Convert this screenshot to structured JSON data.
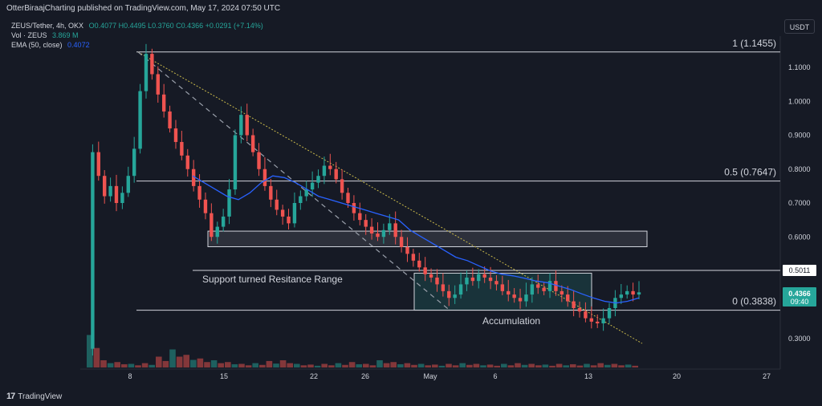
{
  "header": {
    "published": "OtterBiraajCharting published on TradingView.com, May 17, 2024 07:50 UTC"
  },
  "legend": {
    "symbol": "ZEUS/Tether, 4h, OKX",
    "ohlc": "O0.4077  H0.4495  L0.3760  C0.4366  +0.0291 (+7.14%)",
    "vol_label": "Vol · ZEUS",
    "vol_value": "3.869 M",
    "ema_label": "EMA (50, close)",
    "ema_value": "0.4072"
  },
  "currency_button": "USDT",
  "footer": {
    "brand": "TradingView"
  },
  "colors": {
    "up": "#26a69a",
    "down": "#ef5350",
    "ema": "#2962ff",
    "level_line": "#d1d4dc",
    "trend_dotted": "#c8b84a"
  },
  "chart_data": {
    "type": "candlestick",
    "ylim": [
      0.25,
      1.2
    ],
    "y_ticks": [
      "1.1000",
      "1.0000",
      "0.9000",
      "0.8000",
      "0.7000",
      "0.6000",
      "0.3000"
    ],
    "x_ticks": [
      "8",
      "15",
      "22",
      "26",
      "May",
      "6",
      "13",
      "20",
      "27"
    ],
    "price_labels": {
      "current": "0.4366",
      "countdown": "09:40",
      "resistance": "0.5011"
    },
    "fib_levels": [
      {
        "label": "1 (1.1455)",
        "value": 1.1455
      },
      {
        "label": "0.5 (0.7647)",
        "value": 0.7647
      },
      {
        "label": "0 (0.3838)",
        "value": 0.3838
      }
    ],
    "resistance_line": {
      "value": 0.5011
    },
    "zones": [
      {
        "low": 0.571,
        "high": 0.617
      },
      {
        "low": 0.384,
        "high": 0.493
      }
    ],
    "annotations": [
      "Support turned Resitance Range",
      "Accumulation"
    ],
    "price_path": [
      0.27,
      0.85,
      0.78,
      0.72,
      0.75,
      0.7,
      0.73,
      0.78,
      0.86,
      1.03,
      1.14,
      1.08,
      1.02,
      0.97,
      0.92,
      0.88,
      0.84,
      0.8,
      0.75,
      0.71,
      0.67,
      0.6,
      0.63,
      0.66,
      0.74,
      0.9,
      0.96,
      0.9,
      0.85,
      0.8,
      0.75,
      0.71,
      0.68,
      0.66,
      0.64,
      0.7,
      0.72,
      0.74,
      0.76,
      0.78,
      0.81,
      0.8,
      0.77,
      0.73,
      0.7,
      0.67,
      0.65,
      0.63,
      0.61,
      0.6,
      0.62,
      0.64,
      0.6,
      0.57,
      0.55,
      0.53,
      0.51,
      0.49,
      0.48,
      0.46,
      0.44,
      0.42,
      0.43,
      0.46,
      0.48,
      0.47,
      0.49,
      0.48,
      0.47,
      0.46,
      0.44,
      0.43,
      0.42,
      0.41,
      0.43,
      0.46,
      0.45,
      0.44,
      0.47,
      0.44,
      0.43,
      0.41,
      0.39,
      0.38,
      0.36,
      0.35,
      0.345,
      0.36,
      0.39,
      0.42,
      0.43,
      0.44,
      0.43,
      0.4366
    ],
    "ema_path": [
      0.78,
      0.76,
      0.74,
      0.72,
      0.71,
      0.73,
      0.76,
      0.78,
      0.775,
      0.76,
      0.74,
      0.72,
      0.71,
      0.7,
      0.69,
      0.68,
      0.67,
      0.66,
      0.65,
      0.62,
      0.6,
      0.58,
      0.56,
      0.54,
      0.53,
      0.515,
      0.5,
      0.49,
      0.485,
      0.478,
      0.47,
      0.465,
      0.455,
      0.445,
      0.432,
      0.42,
      0.41,
      0.405,
      0.41,
      0.42
    ],
    "volume_rel": [
      0.9,
      0.2,
      0.15,
      0.1,
      0.12,
      0.3,
      0.5,
      0.35,
      0.25,
      0.2,
      0.15,
      0.1,
      0.12,
      0.18,
      0.2,
      0.1,
      0.08,
      0.1,
      0.12,
      0.15,
      0.1,
      0.2,
      0.15,
      0.12,
      0.1,
      0.08,
      0.1,
      0.12,
      0.1,
      0.08,
      0.1,
      0.12,
      0.1,
      0.08,
      0.1,
      0.09,
      0.1,
      0.12,
      0.1,
      0.08
    ]
  }
}
